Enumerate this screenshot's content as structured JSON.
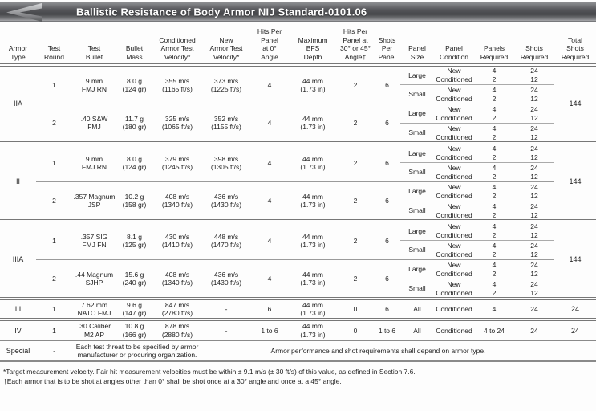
{
  "banner": {
    "title": "Ballistic Resistance of Body Armor NIJ Standard-0101.06"
  },
  "table": {
    "headers": [
      [
        "Armor",
        "Type"
      ],
      [
        "Test",
        "Round"
      ],
      [
        "Test",
        "Bullet"
      ],
      [
        "Bullet",
        "Mass"
      ],
      [
        "Conditioned",
        "Armor Test",
        "Velocity*"
      ],
      [
        "New",
        "Armor Test",
        "Velocity*"
      ],
      [
        "Hits Per",
        "Panel",
        "at 0°",
        "Angle"
      ],
      [
        "Maximum",
        "BFS",
        "Depth"
      ],
      [
        "Hits Per",
        "Panel at",
        "30° or 45°",
        "Angle†"
      ],
      [
        "Shots",
        "Per",
        "Panel"
      ],
      [
        "Panel",
        "Size"
      ],
      [
        "Panel",
        "Condition"
      ],
      [
        "Panels",
        "Required"
      ],
      [
        "Shots",
        "Required"
      ],
      [
        "Total",
        "Shots",
        "Required"
      ]
    ],
    "sections": [
      {
        "armor_type": "IIA",
        "total_shots": "144",
        "rounds": [
          {
            "test_round": "1",
            "bullet": [
              "9 mm",
              "FMJ RN"
            ],
            "mass": [
              "8.0 g",
              "(124 gr)"
            ],
            "conditioned_velocity": [
              "355 m/s",
              "(1165 ft/s)"
            ],
            "new_velocity": [
              "373 m/s",
              "(1225 ft/s)"
            ],
            "hits_at_0": "4",
            "max_bfs": [
              "44 mm",
              "(1.73 in)"
            ],
            "hits_at_30_45": "2",
            "shots_per_panel": "6",
            "panels": [
              {
                "size": "Large",
                "conditions": [
                  {
                    "condition": "New",
                    "panels_required": "4",
                    "shots_required": "24"
                  },
                  {
                    "condition": "Conditioned",
                    "panels_required": "2",
                    "shots_required": "12"
                  }
                ]
              },
              {
                "size": "Small",
                "conditions": [
                  {
                    "condition": "New",
                    "panels_required": "4",
                    "shots_required": "24"
                  },
                  {
                    "condition": "Conditioned",
                    "panels_required": "2",
                    "shots_required": "12"
                  }
                ]
              }
            ]
          },
          {
            "test_round": "2",
            "bullet": [
              ".40 S&W",
              "FMJ"
            ],
            "mass": [
              "11.7 g",
              "(180 gr)"
            ],
            "conditioned_velocity": [
              "325 m/s",
              "(1065 ft/s)"
            ],
            "new_velocity": [
              "352 m/s",
              "(1155 ft/s)"
            ],
            "hits_at_0": "4",
            "max_bfs": [
              "44 mm",
              "(1.73 in)"
            ],
            "hits_at_30_45": "2",
            "shots_per_panel": "6",
            "panels": [
              {
                "size": "Large",
                "conditions": [
                  {
                    "condition": "New",
                    "panels_required": "4",
                    "shots_required": "24"
                  },
                  {
                    "condition": "Conditioned",
                    "panels_required": "2",
                    "shots_required": "12"
                  }
                ]
              },
              {
                "size": "Small",
                "conditions": [
                  {
                    "condition": "New",
                    "panels_required": "4",
                    "shots_required": "24"
                  },
                  {
                    "condition": "Conditioned",
                    "panels_required": "2",
                    "shots_required": "12"
                  }
                ]
              }
            ]
          }
        ]
      },
      {
        "armor_type": "II",
        "total_shots": "144",
        "rounds": [
          {
            "test_round": "1",
            "bullet": [
              "9 mm",
              "FMJ RN"
            ],
            "mass": [
              "8.0 g",
              "(124 gr)"
            ],
            "conditioned_velocity": [
              "379 m/s",
              "(1245 ft/s)"
            ],
            "new_velocity": [
              "398 m/s",
              "(1305 ft/s)"
            ],
            "hits_at_0": "4",
            "max_bfs": [
              "44 mm",
              "(1.73 in)"
            ],
            "hits_at_30_45": "2",
            "shots_per_panel": "6",
            "panels": [
              {
                "size": "Large",
                "conditions": [
                  {
                    "condition": "New",
                    "panels_required": "4",
                    "shots_required": "24"
                  },
                  {
                    "condition": "Conditioned",
                    "panels_required": "2",
                    "shots_required": "12"
                  }
                ]
              },
              {
                "size": "Small",
                "conditions": [
                  {
                    "condition": "New",
                    "panels_required": "4",
                    "shots_required": "24"
                  },
                  {
                    "condition": "Conditioned",
                    "panels_required": "2",
                    "shots_required": "12"
                  }
                ]
              }
            ]
          },
          {
            "test_round": "2",
            "bullet": [
              ".357 Magnum",
              "JSP"
            ],
            "mass": [
              "10.2 g",
              "(158 gr)"
            ],
            "conditioned_velocity": [
              "408 m/s",
              "(1340 ft/s)"
            ],
            "new_velocity": [
              "436 m/s",
              "(1430 ft/s)"
            ],
            "hits_at_0": "4",
            "max_bfs": [
              "44 mm",
              "(1.73 in)"
            ],
            "hits_at_30_45": "2",
            "shots_per_panel": "6",
            "panels": [
              {
                "size": "Large",
                "conditions": [
                  {
                    "condition": "New",
                    "panels_required": "4",
                    "shots_required": "24"
                  },
                  {
                    "condition": "Conditioned",
                    "panels_required": "2",
                    "shots_required": "12"
                  }
                ]
              },
              {
                "size": "Small",
                "conditions": [
                  {
                    "condition": "New",
                    "panels_required": "4",
                    "shots_required": "24"
                  },
                  {
                    "condition": "Conditioned",
                    "panels_required": "2",
                    "shots_required": "12"
                  }
                ]
              }
            ]
          }
        ]
      },
      {
        "armor_type": "IIIA",
        "total_shots": "144",
        "rounds": [
          {
            "test_round": "1",
            "bullet": [
              ".357 SIG",
              "FMJ FN"
            ],
            "mass": [
              "8.1 g",
              "(125 gr)"
            ],
            "conditioned_velocity": [
              "430 m/s",
              "(1410 ft/s)"
            ],
            "new_velocity": [
              "448 m/s",
              "(1470 ft/s)"
            ],
            "hits_at_0": "4",
            "max_bfs": [
              "44 mm",
              "(1.73 in)"
            ],
            "hits_at_30_45": "2",
            "shots_per_panel": "6",
            "panels": [
              {
                "size": "Large",
                "conditions": [
                  {
                    "condition": "New",
                    "panels_required": "4",
                    "shots_required": "24"
                  },
                  {
                    "condition": "Conditioned",
                    "panels_required": "2",
                    "shots_required": "12"
                  }
                ]
              },
              {
                "size": "Small",
                "conditions": [
                  {
                    "condition": "New",
                    "panels_required": "4",
                    "shots_required": "24"
                  },
                  {
                    "condition": "Conditioned",
                    "panels_required": "2",
                    "shots_required": "12"
                  }
                ]
              }
            ]
          },
          {
            "test_round": "2",
            "bullet": [
              ".44 Magnum",
              "SJHP"
            ],
            "mass": [
              "15.6 g",
              "(240 gr)"
            ],
            "conditioned_velocity": [
              "408 m/s",
              "(1340 ft/s)"
            ],
            "new_velocity": [
              "436 m/s",
              "(1430 ft/s)"
            ],
            "hits_at_0": "4",
            "max_bfs": [
              "44 mm",
              "(1.73 in)"
            ],
            "hits_at_30_45": "2",
            "shots_per_panel": "6",
            "panels": [
              {
                "size": "Large",
                "conditions": [
                  {
                    "condition": "New",
                    "panels_required": "4",
                    "shots_required": "24"
                  },
                  {
                    "condition": "Conditioned",
                    "panels_required": "2",
                    "shots_required": "12"
                  }
                ]
              },
              {
                "size": "Small",
                "conditions": [
                  {
                    "condition": "New",
                    "panels_required": "4",
                    "shots_required": "24"
                  },
                  {
                    "condition": "Conditioned",
                    "panels_required": "2",
                    "shots_required": "12"
                  }
                ]
              }
            ]
          }
        ]
      }
    ],
    "single_rows": [
      {
        "armor_type": "III",
        "test_round": "1",
        "bullet": [
          "7.62 mm",
          "NATO FMJ"
        ],
        "mass": [
          "9.6 g",
          "(147 gr)"
        ],
        "conditioned_velocity": [
          "847 m/s",
          "(2780 ft/s)"
        ],
        "new_velocity": "-",
        "hits_at_0": "6",
        "max_bfs": [
          "44 mm",
          "(1.73 in)"
        ],
        "hits_at_30_45": "0",
        "shots_per_panel": "6",
        "panel_size": "All",
        "panel_condition": "Conditioned",
        "panels_required": "4",
        "shots_required": "24",
        "total_shots": "24"
      },
      {
        "armor_type": "IV",
        "test_round": "1",
        "bullet": [
          ".30 Caliber",
          "M2 AP"
        ],
        "mass": [
          "10.8 g",
          "(166 gr)"
        ],
        "conditioned_velocity": [
          "878 m/s",
          "(2880 ft/s)"
        ],
        "new_velocity": "-",
        "hits_at_0": "1 to 6",
        "max_bfs": [
          "44 mm",
          "(1.73 in)"
        ],
        "hits_at_30_45": "0",
        "shots_per_panel": "1 to 6",
        "panel_size": "All",
        "panel_condition": "Conditioned",
        "panels_required": "4 to 24",
        "shots_required": "24",
        "total_shots": "24"
      }
    ],
    "special_row": {
      "armor_type": "Special",
      "test_round": "-",
      "left_text": "Each test threat to be specified by armor manufacturer or procuring organization.",
      "right_text": "Armor performance and shot requirements shall depend on armor type."
    }
  },
  "footnotes": [
    "*Target measurement velocity. Fair hit measurement velocities must be within ± 9.1 m/s (± 30 ft/s) of this value, as defined in Section 7.6.",
    "†Each armor that is to be shot at angles other than 0° shall be shot once at a 30° angle and once at a 45° angle."
  ]
}
